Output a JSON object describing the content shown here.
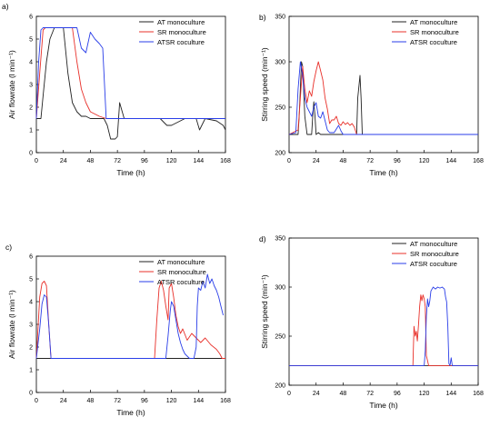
{
  "chart_data": [
    {
      "type": "line",
      "panel_label": "a)",
      "xlabel": "Time (h)",
      "ylabel": "Air flowrate (l min⁻¹)",
      "xlim": [
        0,
        168
      ],
      "ylim": [
        0,
        6
      ],
      "xticks": [
        0,
        24,
        48,
        72,
        96,
        120,
        144,
        168
      ],
      "yticks": [
        0,
        1,
        2,
        3,
        4,
        5,
        6
      ],
      "tick_decimals": 0,
      "grid": false,
      "legend_position": "top-right",
      "series": [
        {
          "name": "AT monoculture",
          "color": "#222222",
          "x": [
            0,
            4,
            6,
            9,
            12,
            16,
            20,
            24,
            28,
            32,
            36,
            40,
            44,
            48,
            52,
            56,
            60,
            63,
            66,
            70,
            72,
            74,
            78,
            84,
            96,
            108,
            110,
            114,
            116,
            120,
            132,
            142,
            145,
            150,
            160,
            166,
            168
          ],
          "y": [
            1.5,
            1.5,
            2.5,
            4,
            5.0,
            5.5,
            5.5,
            5.5,
            3.5,
            2.2,
            1.8,
            1.6,
            1.6,
            1.5,
            1.5,
            1.5,
            1.5,
            1.2,
            0.6,
            0.6,
            0.7,
            2.2,
            1.5,
            1.5,
            1.5,
            1.5,
            1.5,
            1.3,
            1.2,
            1.2,
            1.5,
            1.5,
            1.0,
            1.5,
            1.4,
            1.2,
            1.0
          ]
        },
        {
          "name": "SR monoculture",
          "color": "#e8302a",
          "x": [
            0,
            3,
            6,
            8,
            20,
            32,
            36,
            40,
            44,
            48,
            56,
            62,
            72,
            168
          ],
          "y": [
            1.5,
            3.5,
            5.4,
            5.5,
            5.5,
            5.5,
            4.0,
            2.8,
            2.2,
            1.8,
            1.6,
            1.5,
            1.5,
            1.5
          ]
        },
        {
          "name": "ATSR coculture",
          "color": "#2a3ee8",
          "x": [
            0,
            2,
            4,
            6,
            20,
            36,
            40,
            44,
            48,
            52,
            56,
            59,
            62,
            72,
            168
          ],
          "y": [
            1.5,
            4.0,
            5.4,
            5.5,
            5.5,
            5.5,
            4.6,
            4.4,
            5.3,
            5.0,
            4.8,
            4.6,
            1.5,
            1.5,
            1.5
          ]
        }
      ]
    },
    {
      "type": "line",
      "panel_label": "b)",
      "xlabel": "Time (h)",
      "ylabel": "Stirring speed (min⁻¹)",
      "xlim": [
        0,
        168
      ],
      "ylim": [
        200,
        350
      ],
      "xticks": [
        0,
        24,
        48,
        72,
        96,
        120,
        144,
        168
      ],
      "yticks": [
        200,
        250,
        300,
        350
      ],
      "tick_decimals": 0,
      "grid": false,
      "legend_position": "top-right",
      "series": [
        {
          "name": "AT monoculture",
          "color": "#222222",
          "x": [
            0,
            8,
            9,
            10,
            11,
            12,
            14,
            16,
            18,
            20,
            21,
            22,
            23,
            24,
            26,
            28,
            30,
            60,
            61,
            63,
            64,
            65,
            66,
            168
          ],
          "y": [
            220,
            220,
            240,
            270,
            300,
            295,
            240,
            220,
            220,
            220,
            240,
            256,
            240,
            220,
            222,
            220,
            220,
            220,
            260,
            285,
            260,
            220,
            220,
            220
          ]
        },
        {
          "name": "SR monoculture",
          "color": "#e8302a",
          "x": [
            0,
            8,
            10,
            12,
            14,
            16,
            18,
            20,
            22,
            24,
            26,
            28,
            30,
            32,
            34,
            36,
            38,
            40,
            42,
            44,
            46,
            48,
            50,
            52,
            54,
            56,
            58,
            60,
            62,
            168
          ],
          "y": [
            220,
            225,
            260,
            295,
            270,
            255,
            268,
            262,
            278,
            290,
            300,
            290,
            280,
            260,
            248,
            232,
            236,
            236,
            240,
            232,
            230,
            234,
            231,
            233,
            230,
            232,
            228,
            220,
            220,
            220
          ]
        },
        {
          "name": "ATSR coculture",
          "color": "#2a3ee8",
          "x": [
            0,
            6,
            8,
            10,
            12,
            14,
            16,
            18,
            20,
            22,
            24,
            26,
            28,
            30,
            32,
            34,
            36,
            40,
            44,
            46,
            48,
            168
          ],
          "y": [
            220,
            222,
            270,
            300,
            285,
            260,
            250,
            245,
            240,
            250,
            255,
            240,
            238,
            245,
            235,
            225,
            222,
            222,
            230,
            224,
            220,
            220
          ]
        }
      ]
    },
    {
      "type": "line",
      "panel_label": "c)",
      "xlabel": "Time (h)",
      "ylabel": "Air flowrate (l min⁻¹)",
      "xlim": [
        0,
        168
      ],
      "ylim": [
        0,
        6
      ],
      "xticks": [
        0,
        24,
        48,
        72,
        96,
        120,
        144,
        168
      ],
      "yticks": [
        0,
        1,
        2,
        3,
        4,
        5,
        6
      ],
      "tick_decimals": 0,
      "grid": false,
      "legend_position": "top-right",
      "series": [
        {
          "name": "AT monoculture",
          "color": "#222222",
          "x": [
            0,
            168
          ],
          "y": [
            1.5,
            1.5
          ]
        },
        {
          "name": "SR monoculture",
          "color": "#e8302a",
          "x": [
            0,
            3,
            5,
            7,
            9,
            11,
            13,
            14,
            105,
            107,
            109,
            111,
            113,
            115,
            117,
            118,
            120,
            122,
            124,
            126,
            128,
            130,
            134,
            138,
            142,
            146,
            150,
            155,
            160,
            163,
            165,
            168
          ],
          "y": [
            1.5,
            4.2,
            4.8,
            4.9,
            4.7,
            3.0,
            1.5,
            1.5,
            1.5,
            3.2,
            4.6,
            4.9,
            4.5,
            3.8,
            3.2,
            4.6,
            4.8,
            4.2,
            3.4,
            2.9,
            2.6,
            2.8,
            2.3,
            2.6,
            2.4,
            2.2,
            2.4,
            2.1,
            1.9,
            1.7,
            1.5,
            1.5
          ]
        },
        {
          "name": "ATSR coculture",
          "color": "#2a3ee8",
          "x": [
            0,
            3,
            5,
            7,
            9,
            11,
            13,
            15,
            115,
            117,
            119,
            120,
            122,
            124,
            126,
            128,
            130,
            132,
            134,
            136,
            140,
            142,
            143,
            144,
            146,
            148,
            150,
            152,
            154,
            156,
            158,
            160,
            162,
            164,
            166
          ],
          "y": [
            1.5,
            2.8,
            3.9,
            4.3,
            4.2,
            3.0,
            1.5,
            1.5,
            1.5,
            2.5,
            3.6,
            4.0,
            3.8,
            3.2,
            2.6,
            2.2,
            1.9,
            1.7,
            1.6,
            1.5,
            1.5,
            2.0,
            3.8,
            4.6,
            4.5,
            4.9,
            4.6,
            5.2,
            4.8,
            5.0,
            4.7,
            4.5,
            4.2,
            3.8,
            3.4
          ]
        }
      ]
    },
    {
      "type": "line",
      "panel_label": "d)",
      "xlabel": "Time (h)",
      "ylabel": "Stirring speed (min⁻¹)",
      "xlim": [
        0,
        168
      ],
      "ylim": [
        200,
        350
      ],
      "xticks": [
        0,
        24,
        48,
        72,
        96,
        120,
        144,
        168
      ],
      "yticks": [
        200,
        250,
        300,
        350
      ],
      "tick_decimals": 0,
      "grid": false,
      "legend_position": "top-right",
      "series": [
        {
          "name": "AT monoculture",
          "color": "#222222",
          "x": [
            0,
            168
          ],
          "y": [
            220,
            220
          ]
        },
        {
          "name": "SR monoculture",
          "color": "#e8302a",
          "x": [
            0,
            110,
            111,
            112,
            113,
            114,
            115,
            116,
            117,
            118,
            119,
            120,
            121,
            122,
            123,
            124,
            125,
            126,
            168
          ],
          "y": [
            220,
            220,
            260,
            250,
            255,
            245,
            262,
            280,
            292,
            286,
            292,
            288,
            280,
            230,
            225,
            220,
            220,
            220,
            220
          ]
        },
        {
          "name": "ATSR coculture",
          "color": "#2a3ee8",
          "x": [
            0,
            120,
            121,
            122,
            123,
            124,
            125,
            126,
            128,
            130,
            132,
            134,
            136,
            138,
            139,
            140,
            141,
            142,
            143,
            144,
            145,
            146,
            168
          ],
          "y": [
            220,
            220,
            235,
            270,
            288,
            280,
            286,
            296,
            300,
            298,
            300,
            299,
            300,
            298,
            290,
            285,
            260,
            222,
            220,
            228,
            220,
            220,
            220
          ]
        }
      ]
    }
  ]
}
